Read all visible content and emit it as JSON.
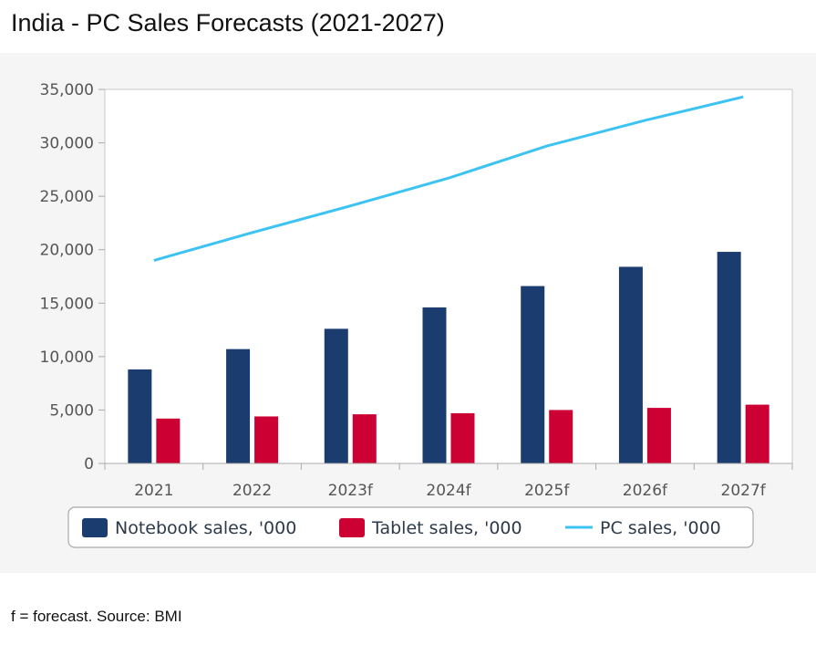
{
  "title": "India - PC Sales Forecasts (2021-2027)",
  "footnote": "f = forecast. Source: BMI",
  "colors": {
    "notebook": "#1b3c6e",
    "tablet": "#cc0033",
    "pc": "#3cc3f2"
  },
  "chart_data": {
    "type": "bar",
    "categories": [
      "2021",
      "2022",
      "2023f",
      "2024f",
      "2025f",
      "2026f",
      "2027f"
    ],
    "series": [
      {
        "name": "Notebook sales, '000",
        "type": "bar",
        "values": [
          8800,
          10700,
          12600,
          14600,
          16600,
          18400,
          19800
        ]
      },
      {
        "name": "Tablet sales, '000",
        "type": "bar",
        "values": [
          4200,
          4400,
          4600,
          4700,
          5000,
          5200,
          5500
        ]
      },
      {
        "name": "PC sales, '000",
        "type": "line",
        "values": [
          19000,
          21600,
          24100,
          26700,
          29700,
          32100,
          34300
        ]
      }
    ],
    "ylim": [
      0,
      35000
    ],
    "yticks": [
      "0",
      "5,000",
      "10,000",
      "15,000",
      "20,000",
      "25,000",
      "30,000",
      "35,000"
    ],
    "grid": false,
    "legend": "bottom"
  }
}
